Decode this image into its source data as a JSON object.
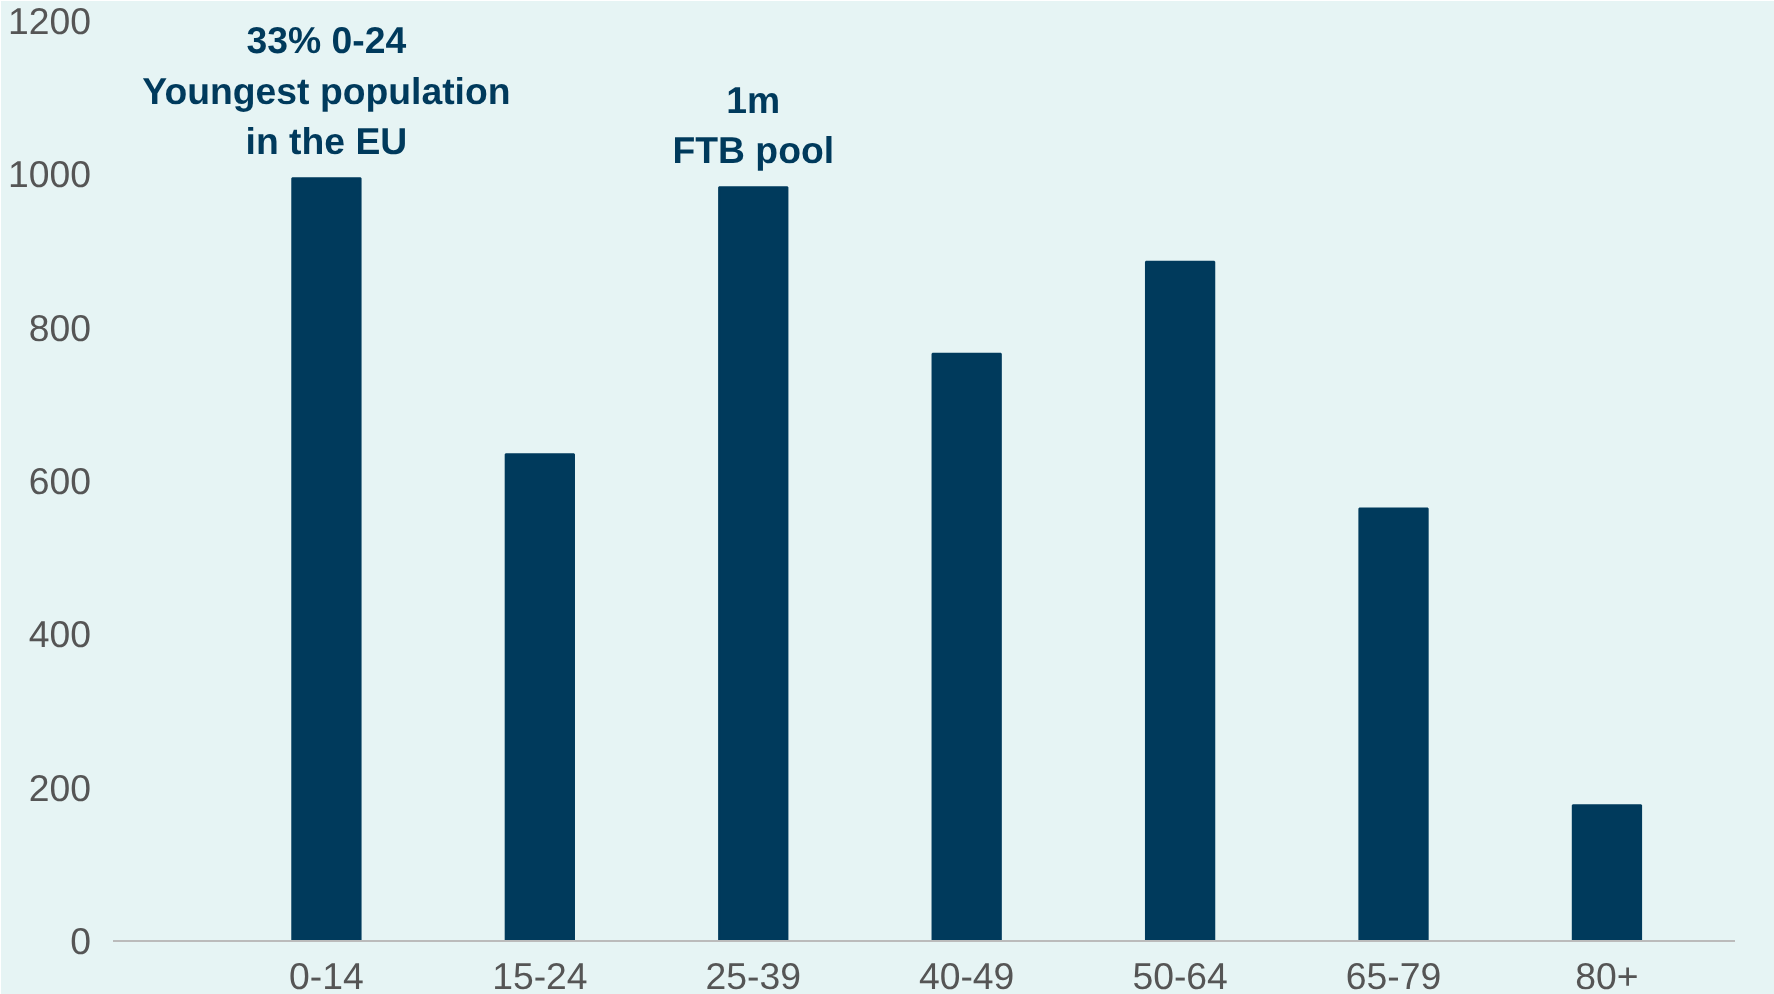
{
  "chart_data": {
    "type": "bar",
    "categories": [
      "0-14",
      "15-24",
      "25-39",
      "40-49",
      "50-64",
      "65-79",
      "80+"
    ],
    "values": [
      995,
      635,
      983,
      766,
      886,
      564,
      177
    ],
    "color": "#003a5c",
    "ylim": [
      0,
      1200
    ],
    "yticks": [
      0,
      200,
      400,
      600,
      800,
      1000,
      1200
    ],
    "grid": false,
    "annotations": [
      {
        "text": "33% 0-24\nYoungest population\nin the EU",
        "x": "0-14",
        "y": 995
      },
      {
        "text": "1m\nFTB pool",
        "x": "25-39",
        "y": 983
      }
    ]
  }
}
